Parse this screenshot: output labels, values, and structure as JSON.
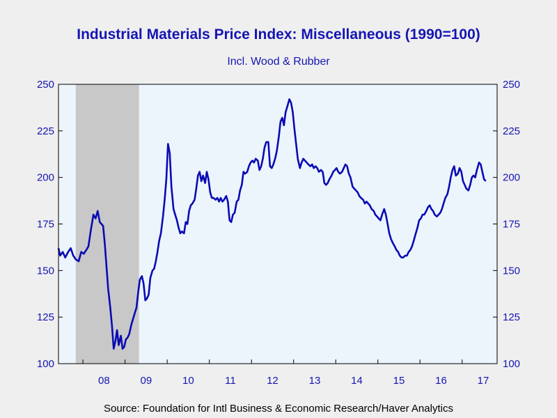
{
  "chart_data": {
    "type": "line",
    "title": "Industrial Materials Price Index: Miscellaneous (1990=100)",
    "subtitle": "Incl. Wood & Rubber",
    "source": "Source:  Foundation for Intl Business & Economic Research/Haver Analytics",
    "ylim": [
      100,
      250
    ],
    "yticks": [
      100,
      125,
      150,
      175,
      200,
      225,
      250
    ],
    "xlim": [
      2007.42,
      2017.83
    ],
    "xtick_labels": [
      {
        "label": "08",
        "x": 2008.5
      },
      {
        "label": "09",
        "x": 2009.5
      },
      {
        "label": "10",
        "x": 2010.5
      },
      {
        "label": "11",
        "x": 2011.5
      },
      {
        "label": "12",
        "x": 2012.5
      },
      {
        "label": "13",
        "x": 2013.5
      },
      {
        "label": "14",
        "x": 2014.5
      },
      {
        "label": "15",
        "x": 2015.5
      },
      {
        "label": "16",
        "x": 2016.5
      },
      {
        "label": "17",
        "x": 2017.5
      }
    ],
    "year_boundaries": [
      2008,
      2009,
      2010,
      2011,
      2012,
      2013,
      2014,
      2015,
      2016,
      2017
    ],
    "recession": {
      "start": 2007.83,
      "end": 2009.33,
      "color": "#c8c8c8"
    },
    "plot_background": "#ecf4fc",
    "line_color": "#0a0ab4",
    "series": [
      {
        "points": [
          [
            2007.42,
            162
          ],
          [
            2007.46,
            158
          ],
          [
            2007.52,
            160
          ],
          [
            2007.58,
            157
          ],
          [
            2007.65,
            160
          ],
          [
            2007.71,
            162
          ],
          [
            2007.77,
            158
          ],
          [
            2007.83,
            156
          ],
          [
            2007.9,
            155
          ],
          [
            2007.96,
            160
          ],
          [
            2008.02,
            159
          ],
          [
            2008.08,
            161
          ],
          [
            2008.13,
            163
          ],
          [
            2008.19,
            172
          ],
          [
            2008.25,
            180
          ],
          [
            2008.3,
            178
          ],
          [
            2008.35,
            182
          ],
          [
            2008.4,
            176
          ],
          [
            2008.44,
            175
          ],
          [
            2008.48,
            174
          ],
          [
            2008.52,
            164
          ],
          [
            2008.56,
            152
          ],
          [
            2008.6,
            140
          ],
          [
            2008.65,
            130
          ],
          [
            2008.69,
            120
          ],
          [
            2008.73,
            108
          ],
          [
            2008.77,
            112
          ],
          [
            2008.81,
            118
          ],
          [
            2008.85,
            110
          ],
          [
            2008.9,
            115
          ],
          [
            2008.94,
            108
          ],
          [
            2008.98,
            109
          ],
          [
            2009.02,
            113
          ],
          [
            2009.06,
            114
          ],
          [
            2009.1,
            116
          ],
          [
            2009.15,
            121
          ],
          [
            2009.19,
            124
          ],
          [
            2009.23,
            127
          ],
          [
            2009.27,
            130
          ],
          [
            2009.31,
            138
          ],
          [
            2009.35,
            145
          ],
          [
            2009.4,
            147
          ],
          [
            2009.44,
            143
          ],
          [
            2009.48,
            134
          ],
          [
            2009.52,
            135
          ],
          [
            2009.56,
            137
          ],
          [
            2009.6,
            146
          ],
          [
            2009.65,
            150
          ],
          [
            2009.69,
            151
          ],
          [
            2009.73,
            155
          ],
          [
            2009.77,
            160
          ],
          [
            2009.81,
            166
          ],
          [
            2009.85,
            170
          ],
          [
            2009.9,
            179
          ],
          [
            2009.94,
            188
          ],
          [
            2009.98,
            199
          ],
          [
            2010.02,
            218
          ],
          [
            2010.06,
            213
          ],
          [
            2010.1,
            195
          ],
          [
            2010.15,
            183
          ],
          [
            2010.19,
            180
          ],
          [
            2010.23,
            177
          ],
          [
            2010.27,
            173
          ],
          [
            2010.31,
            170
          ],
          [
            2010.35,
            171
          ],
          [
            2010.4,
            170
          ],
          [
            2010.44,
            176
          ],
          [
            2010.48,
            175
          ],
          [
            2010.52,
            182
          ],
          [
            2010.56,
            185
          ],
          [
            2010.6,
            186
          ],
          [
            2010.65,
            188
          ],
          [
            2010.69,
            194
          ],
          [
            2010.73,
            201
          ],
          [
            2010.77,
            203
          ],
          [
            2010.81,
            198
          ],
          [
            2010.85,
            201
          ],
          [
            2010.9,
            197
          ],
          [
            2010.94,
            203
          ],
          [
            2010.98,
            199
          ],
          [
            2011.02,
            192
          ],
          [
            2011.06,
            189
          ],
          [
            2011.1,
            189
          ],
          [
            2011.15,
            188
          ],
          [
            2011.19,
            189
          ],
          [
            2011.23,
            187
          ],
          [
            2011.27,
            189
          ],
          [
            2011.31,
            187
          ],
          [
            2011.35,
            188
          ],
          [
            2011.4,
            190
          ],
          [
            2011.44,
            187
          ],
          [
            2011.48,
            177
          ],
          [
            2011.52,
            176
          ],
          [
            2011.56,
            180
          ],
          [
            2011.6,
            181
          ],
          [
            2011.65,
            187
          ],
          [
            2011.69,
            188
          ],
          [
            2011.73,
            193
          ],
          [
            2011.77,
            196
          ],
          [
            2011.81,
            203
          ],
          [
            2011.85,
            202
          ],
          [
            2011.9,
            203
          ],
          [
            2011.94,
            206
          ],
          [
            2011.98,
            208
          ],
          [
            2012.02,
            209
          ],
          [
            2012.06,
            208
          ],
          [
            2012.1,
            210
          ],
          [
            2012.15,
            209
          ],
          [
            2012.19,
            204
          ],
          [
            2012.23,
            206
          ],
          [
            2012.27,
            210
          ],
          [
            2012.31,
            216
          ],
          [
            2012.35,
            219
          ],
          [
            2012.4,
            219
          ],
          [
            2012.44,
            206
          ],
          [
            2012.48,
            205
          ],
          [
            2012.52,
            207
          ],
          [
            2012.56,
            210
          ],
          [
            2012.6,
            214
          ],
          [
            2012.65,
            222
          ],
          [
            2012.69,
            230
          ],
          [
            2012.73,
            232
          ],
          [
            2012.77,
            228
          ],
          [
            2012.81,
            235
          ],
          [
            2012.85,
            238
          ],
          [
            2012.9,
            242
          ],
          [
            2012.94,
            240
          ],
          [
            2012.98,
            235
          ],
          [
            2013.02,
            226
          ],
          [
            2013.06,
            218
          ],
          [
            2013.1,
            210
          ],
          [
            2013.15,
            205
          ],
          [
            2013.19,
            208
          ],
          [
            2013.23,
            210
          ],
          [
            2013.27,
            209
          ],
          [
            2013.31,
            208
          ],
          [
            2013.35,
            207
          ],
          [
            2013.4,
            206
          ],
          [
            2013.44,
            207
          ],
          [
            2013.48,
            205
          ],
          [
            2013.52,
            206
          ],
          [
            2013.56,
            205
          ],
          [
            2013.6,
            203
          ],
          [
            2013.65,
            204
          ],
          [
            2013.69,
            203
          ],
          [
            2013.73,
            197
          ],
          [
            2013.77,
            196
          ],
          [
            2013.81,
            197
          ],
          [
            2013.85,
            199
          ],
          [
            2013.9,
            201
          ],
          [
            2013.94,
            203
          ],
          [
            2013.98,
            204
          ],
          [
            2014.02,
            205
          ],
          [
            2014.06,
            203
          ],
          [
            2014.1,
            202
          ],
          [
            2014.15,
            203
          ],
          [
            2014.19,
            205
          ],
          [
            2014.23,
            207
          ],
          [
            2014.27,
            206
          ],
          [
            2014.31,
            202
          ],
          [
            2014.35,
            200
          ],
          [
            2014.4,
            195
          ],
          [
            2014.44,
            194
          ],
          [
            2014.48,
            193
          ],
          [
            2014.52,
            192
          ],
          [
            2014.56,
            190
          ],
          [
            2014.6,
            189
          ],
          [
            2014.65,
            188
          ],
          [
            2014.69,
            186
          ],
          [
            2014.73,
            187
          ],
          [
            2014.77,
            186
          ],
          [
            2014.81,
            185
          ],
          [
            2014.85,
            183
          ],
          [
            2014.9,
            182
          ],
          [
            2014.94,
            180
          ],
          [
            2014.98,
            179
          ],
          [
            2015.02,
            178
          ],
          [
            2015.06,
            177
          ],
          [
            2015.1,
            180
          ],
          [
            2015.15,
            183
          ],
          [
            2015.19,
            180
          ],
          [
            2015.23,
            175
          ],
          [
            2015.27,
            170
          ],
          [
            2015.31,
            167
          ],
          [
            2015.35,
            165
          ],
          [
            2015.4,
            163
          ],
          [
            2015.44,
            161
          ],
          [
            2015.48,
            160
          ],
          [
            2015.52,
            158
          ],
          [
            2015.56,
            157
          ],
          [
            2015.6,
            157
          ],
          [
            2015.65,
            158
          ],
          [
            2015.69,
            158
          ],
          [
            2015.73,
            160
          ],
          [
            2015.77,
            161
          ],
          [
            2015.81,
            163
          ],
          [
            2015.85,
            166
          ],
          [
            2015.9,
            170
          ],
          [
            2015.94,
            173
          ],
          [
            2015.98,
            177
          ],
          [
            2016.02,
            178
          ],
          [
            2016.06,
            180
          ],
          [
            2016.1,
            180
          ],
          [
            2016.15,
            182
          ],
          [
            2016.19,
            184
          ],
          [
            2016.23,
            185
          ],
          [
            2016.27,
            183
          ],
          [
            2016.31,
            182
          ],
          [
            2016.35,
            180
          ],
          [
            2016.4,
            179
          ],
          [
            2016.44,
            180
          ],
          [
            2016.48,
            181
          ],
          [
            2016.52,
            183
          ],
          [
            2016.56,
            186
          ],
          [
            2016.6,
            189
          ],
          [
            2016.65,
            191
          ],
          [
            2016.69,
            195
          ],
          [
            2016.73,
            200
          ],
          [
            2016.77,
            204
          ],
          [
            2016.81,
            206
          ],
          [
            2016.85,
            201
          ],
          [
            2016.9,
            202
          ],
          [
            2016.94,
            205
          ],
          [
            2016.98,
            203
          ],
          [
            2017.02,
            198
          ],
          [
            2017.06,
            196
          ],
          [
            2017.1,
            194
          ],
          [
            2017.15,
            193
          ],
          [
            2017.19,
            196
          ],
          [
            2017.23,
            200
          ],
          [
            2017.27,
            201
          ],
          [
            2017.31,
            200
          ],
          [
            2017.35,
            204
          ],
          [
            2017.4,
            208
          ],
          [
            2017.44,
            207
          ],
          [
            2017.48,
            203
          ],
          [
            2017.52,
            199
          ],
          [
            2017.56,
            198
          ]
        ]
      }
    ],
    "grid": false,
    "legend": "none"
  }
}
